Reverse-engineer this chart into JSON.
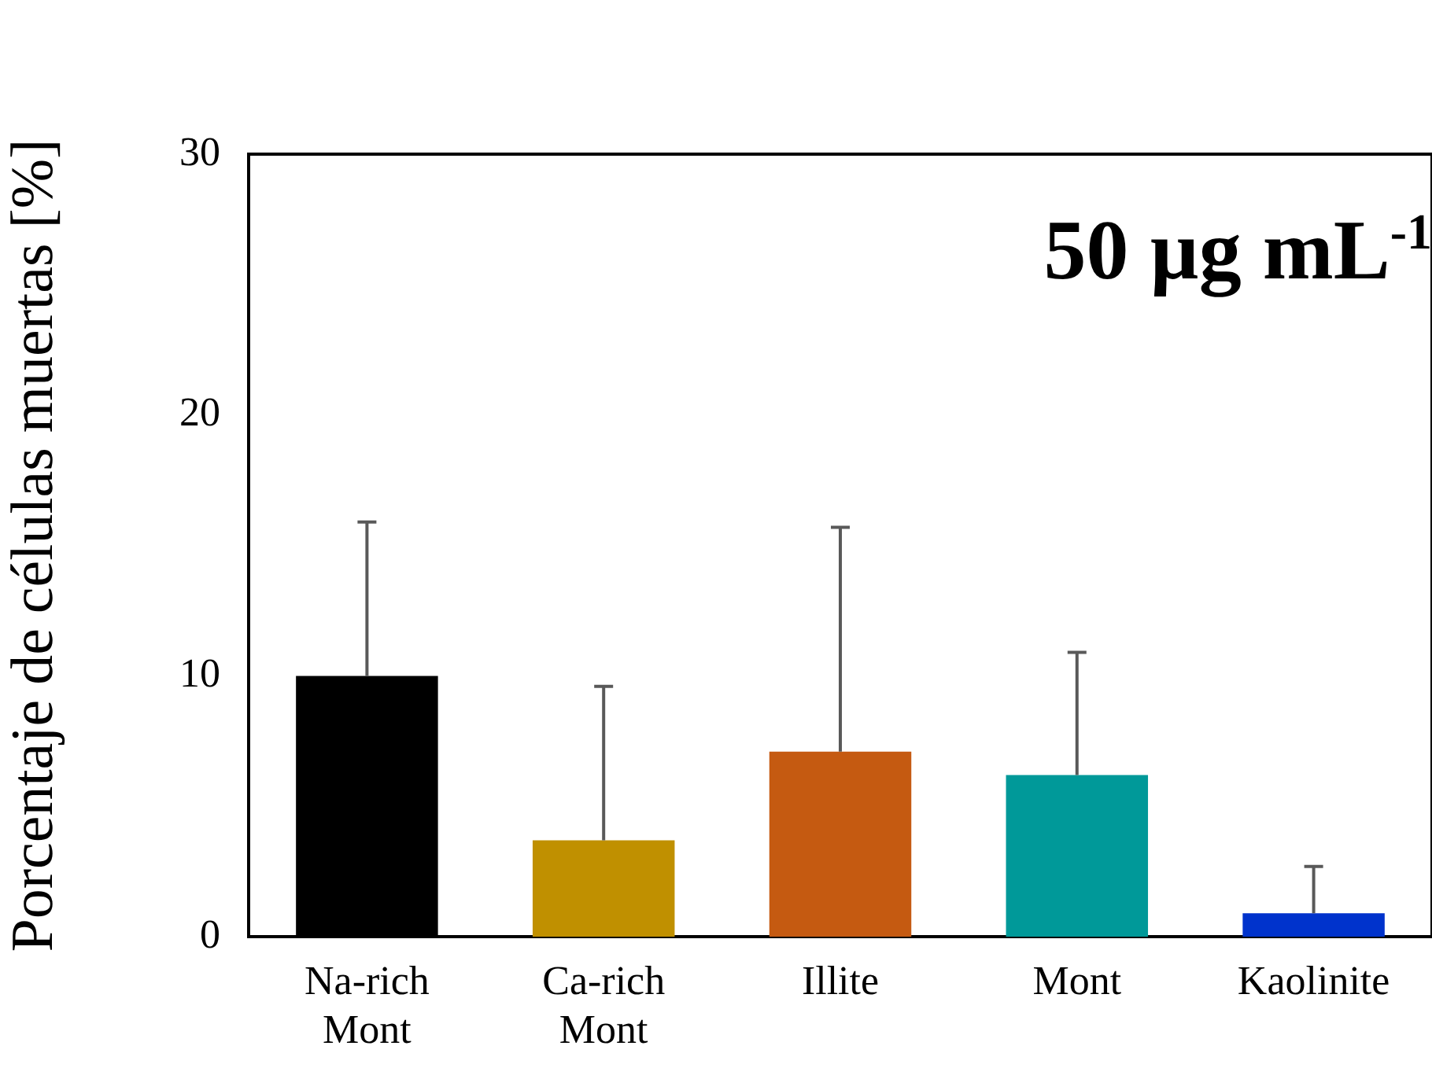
{
  "chart_data": {
    "type": "bar",
    "ylabel": "Porcentaje de células muertas [%]",
    "annotations": [
      "50 µg mL$^{-1}$"
    ],
    "categories": [
      "Na-rich Mont",
      "Ca-rich Mont",
      "Illite",
      "Mont",
      "Kaolinite"
    ],
    "values": [
      10.0,
      3.7,
      7.1,
      6.2,
      0.9
    ],
    "colors": [
      "#000000",
      "#c09000",
      "#c55a11",
      "#009999",
      "#0033cc"
    ],
    "errors": [
      [
        10.0,
        15.9
      ],
      [
        3.7,
        9.6
      ],
      [
        7.1,
        15.7
      ],
      [
        6.2,
        10.9
      ],
      [
        0.9,
        2.7
      ]
    ],
    "ylim": [
      0,
      30
    ],
    "yticks": [
      0,
      10,
      20,
      30
    ],
    "grid": false,
    "legend": false
  }
}
